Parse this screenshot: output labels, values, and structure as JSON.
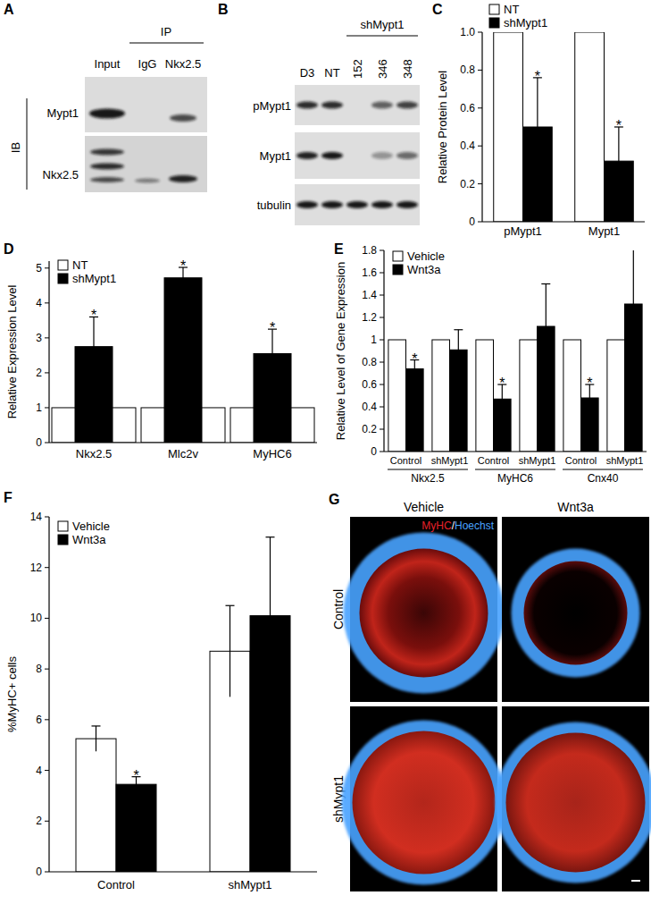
{
  "panel_a": {
    "label": "A",
    "ip_label": "IP",
    "ib_label": "IB",
    "lanes": [
      "Input",
      "IgG",
      "Nkx2.5"
    ],
    "rows": [
      "Mypt1",
      "Nkx2.5"
    ]
  },
  "panel_b": {
    "label": "B",
    "lanes": [
      "D3",
      "NT",
      "152",
      "346",
      "348"
    ],
    "group_label": "shMypt1",
    "rows": [
      "pMypt1",
      "Mypt1",
      "tubulin"
    ]
  },
  "panel_g": {
    "label": "G",
    "columns": [
      "Vehicle",
      "Wnt3a"
    ],
    "rows": [
      "Control",
      "shMypt1"
    ],
    "stain_labels": [
      "MyHC",
      "Hoechst"
    ],
    "stain_colors": [
      "#e8202a",
      "#4aa3ff"
    ],
    "stain_separator": "/"
  },
  "chart_data": [
    {
      "type": "bar",
      "title": "C",
      "y_label": "Relative Protein Level",
      "categories": [
        "pMypt1",
        "Mypt1"
      ],
      "series": [
        {
          "name": "NT",
          "color": "#ffffff",
          "values": [
            1,
            1
          ],
          "errors": [
            null,
            null
          ],
          "significance": [
            null,
            null
          ]
        },
        {
          "name": "shMypt1",
          "color": "#000000",
          "values": [
            0.5,
            0.32
          ],
          "errors": [
            0.26,
            0.18
          ],
          "significance": [
            "*",
            "*"
          ]
        }
      ],
      "ylim": [
        0,
        1
      ],
      "yticks": [
        0,
        0.2,
        0.4,
        0.6,
        0.8,
        {
          "value": 1,
          "label": "1.0"
        }
      ],
      "legend": "top-left"
    },
    {
      "type": "bar",
      "title": "D",
      "y_label": "Relative Expression Level",
      "categories": [
        "Nkx2.5",
        "Mlc2v",
        "MyHC6"
      ],
      "series": [
        {
          "name": "NT",
          "color": "#ffffff",
          "values": [
            1,
            1,
            1
          ],
          "errors": [
            null,
            null,
            null
          ],
          "significance": [
            null,
            null,
            null
          ]
        },
        {
          "name": "shMypt1",
          "color": "#000000",
          "values": [
            2.75,
            4.72,
            2.55
          ],
          "errors": [
            0.85,
            0.3,
            0.7
          ],
          "significance": [
            "*",
            "*",
            "*"
          ]
        }
      ],
      "ylim": [
        0,
        5.2
      ],
      "yticks": [
        0,
        1,
        2,
        3,
        4,
        5
      ],
      "legend": "top-left"
    },
    {
      "type": "bar",
      "title": "E",
      "y_label": "Relative Level of Gene Expression",
      "categories": [
        "Control",
        "shMypt1",
        "Control",
        "shMypt1",
        "Control",
        "shMypt1"
      ],
      "group_labels": [
        "Nkx2.5",
        "MyHC6",
        "Cnx40"
      ],
      "series": [
        {
          "name": "Vehicle",
          "color": "#ffffff",
          "values": [
            1,
            1,
            1,
            1,
            1,
            1
          ],
          "errors": [
            null,
            null,
            null,
            null,
            null,
            null
          ],
          "significance": [
            null,
            null,
            null,
            null,
            null,
            null
          ]
        },
        {
          "name": "Wnt3a",
          "color": "#000000",
          "values": [
            0.74,
            0.91,
            0.47,
            1.12,
            0.48,
            1.32
          ],
          "errors": [
            0.08,
            0.18,
            0.13,
            0.38,
            0.12,
            0.5
          ],
          "significance": [
            "*",
            null,
            "*",
            null,
            "*",
            null
          ]
        }
      ],
      "ylim": [
        0,
        1.8
      ],
      "yticks": [
        0,
        0.2,
        0.4,
        0.6,
        0.8,
        1,
        1.2,
        1.4,
        1.6,
        1.8
      ],
      "legend": "top-left"
    },
    {
      "type": "bar",
      "title": "F",
      "y_label": "%MyHC+ cells",
      "categories": [
        "Control",
        "shMypt1"
      ],
      "series": [
        {
          "name": "Vehicle",
          "color": "#ffffff",
          "values": [
            5.25,
            8.7
          ],
          "errors": [
            0.5,
            1.8
          ],
          "significance": [
            null,
            null
          ]
        },
        {
          "name": "Wnt3a",
          "color": "#000000",
          "values": [
            3.45,
            10.1
          ],
          "errors": [
            0.3,
            3.1
          ],
          "significance": [
            "*",
            null
          ]
        }
      ],
      "ylim": [
        0,
        14
      ],
      "yticks": [
        0,
        2,
        4,
        6,
        8,
        10,
        12,
        14
      ],
      "legend": "top-left"
    }
  ]
}
